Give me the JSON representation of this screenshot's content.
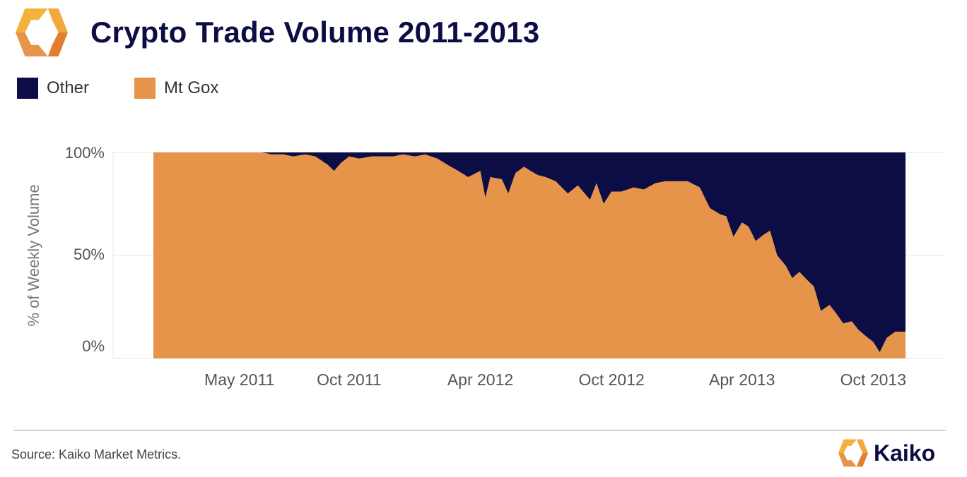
{
  "header": {
    "title": "Crypto Trade Volume 2011-2013"
  },
  "footer": {
    "source": "Source: Kaiko Market Metrics.",
    "brand": "Kaiko"
  },
  "colors": {
    "mt_gox": "#e5944a",
    "other": "#0d0d45",
    "title": "#0d0d45",
    "grid": "#e6e6e6",
    "axis_text": "#555555"
  },
  "icons": {
    "logo": "kaiko-logo-icon"
  },
  "chart_data": {
    "type": "area",
    "stacked": true,
    "normalized_percent": true,
    "title": "Crypto Trade Volume 2011-2013",
    "xlabel": "",
    "ylabel": "% of Weekly Volume",
    "ylim": [
      0,
      100
    ],
    "xlim": [
      "2011-01",
      "2013-11"
    ],
    "y_ticks": [
      "0%",
      "50%",
      "100%"
    ],
    "x_tick_labels": [
      "May 2011",
      "Oct 2011",
      "Apr 2012",
      "Oct 2012",
      "Apr 2013",
      "Oct 2013"
    ],
    "x_tick_dates": [
      "2011-05",
      "2011-10",
      "2012-04",
      "2012-10",
      "2013-04",
      "2013-10"
    ],
    "grid": true,
    "legend_position": "top-left",
    "legend": [
      "Other",
      "Mt Gox"
    ],
    "x": [
      "2011-01-01",
      "2011-02-01",
      "2011-03-01",
      "2011-04-01",
      "2011-05-01",
      "2011-06-01",
      "2011-06-15",
      "2011-07-01",
      "2011-07-15",
      "2011-08-01",
      "2011-08-15",
      "2011-09-01",
      "2011-09-10",
      "2011-09-20",
      "2011-10-01",
      "2011-10-15",
      "2011-11-01",
      "2011-11-15",
      "2011-12-01",
      "2011-12-15",
      "2012-01-01",
      "2012-01-15",
      "2012-02-01",
      "2012-02-15",
      "2012-03-01",
      "2012-03-15",
      "2012-04-01",
      "2012-04-08",
      "2012-04-15",
      "2012-05-01",
      "2012-05-10",
      "2012-05-20",
      "2012-06-01",
      "2012-06-10",
      "2012-06-20",
      "2012-07-01",
      "2012-07-15",
      "2012-08-01",
      "2012-08-15",
      "2012-09-01",
      "2012-09-10",
      "2012-09-20",
      "2012-10-01",
      "2012-10-15",
      "2012-11-01",
      "2012-11-15",
      "2012-12-01",
      "2012-12-15",
      "2013-01-01",
      "2013-01-15",
      "2013-02-01",
      "2013-02-15",
      "2013-03-01",
      "2013-03-10",
      "2013-03-20",
      "2013-04-01",
      "2013-04-10",
      "2013-04-20",
      "2013-05-01",
      "2013-05-10",
      "2013-05-20",
      "2013-06-01",
      "2013-06-10",
      "2013-06-20",
      "2013-07-01",
      "2013-07-10",
      "2013-07-20",
      "2013-08-01",
      "2013-08-10",
      "2013-08-20",
      "2013-09-01",
      "2013-09-10",
      "2013-09-20",
      "2013-10-01",
      "2013-10-10",
      "2013-10-20",
      "2013-11-01",
      "2013-11-10",
      "2013-11-15"
    ],
    "series": [
      {
        "name": "Mt Gox",
        "color": "#e5944a",
        "values": [
          100,
          100,
          100,
          100,
          100,
          100,
          99,
          99,
          98,
          99,
          98,
          94,
          91,
          95,
          98,
          97,
          98,
          98,
          98,
          99,
          98,
          99,
          97,
          94,
          91,
          88,
          91,
          78,
          88,
          87,
          80,
          90,
          93,
          91,
          89,
          88,
          86,
          80,
          84,
          77,
          85,
          75,
          81,
          81,
          83,
          82,
          85,
          86,
          86,
          86,
          83,
          73,
          70,
          69,
          59,
          66,
          64,
          57,
          60,
          62,
          50,
          45,
          39,
          42,
          38,
          35,
          23,
          26,
          22,
          17,
          18,
          14,
          11,
          8,
          3,
          10,
          13,
          13,
          13
        ]
      },
      {
        "name": "Other",
        "color": "#0d0d45",
        "values": [
          0,
          0,
          0,
          0,
          0,
          0,
          1,
          1,
          2,
          1,
          2,
          6,
          9,
          5,
          2,
          3,
          2,
          2,
          2,
          1,
          2,
          1,
          3,
          6,
          9,
          12,
          9,
          22,
          12,
          13,
          20,
          10,
          7,
          9,
          11,
          12,
          14,
          20,
          16,
          23,
          15,
          25,
          19,
          19,
          17,
          18,
          15,
          14,
          14,
          14,
          17,
          27,
          30,
          31,
          41,
          34,
          36,
          43,
          40,
          38,
          50,
          55,
          61,
          58,
          62,
          65,
          77,
          74,
          78,
          83,
          82,
          86,
          89,
          92,
          97,
          90,
          87,
          87,
          87
        ]
      }
    ]
  }
}
